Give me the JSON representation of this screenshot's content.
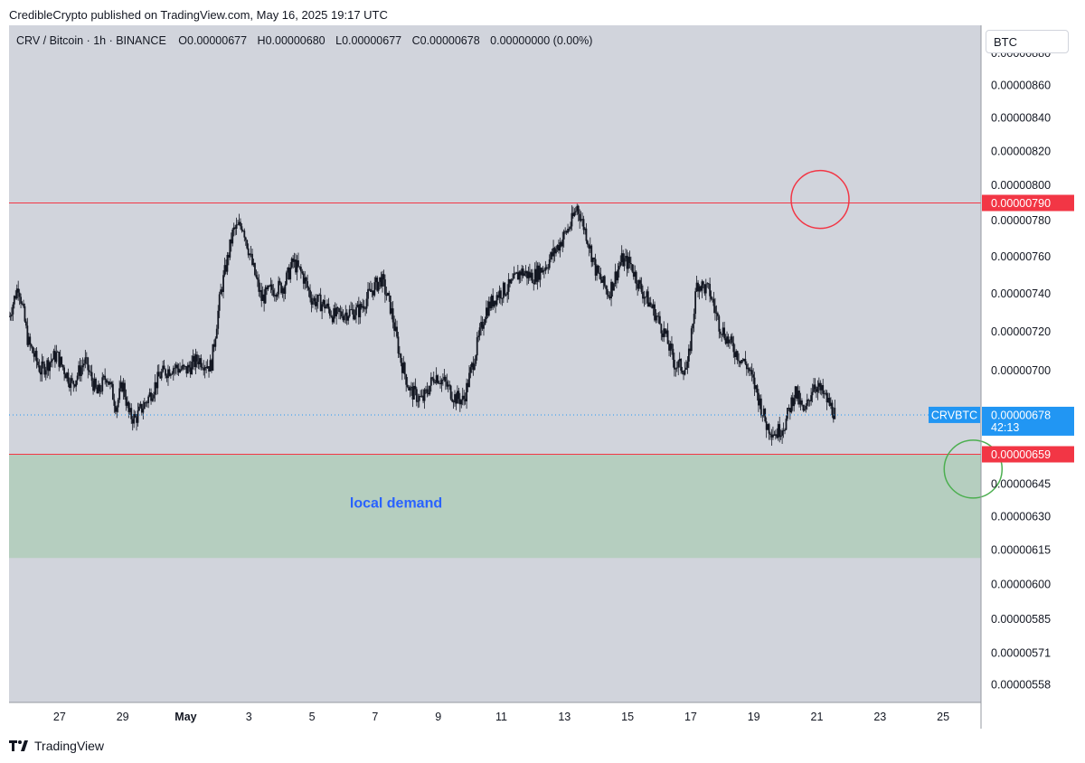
{
  "publisher_line": "CredibleCrypto published on TradingView.com, May 16, 2025 19:17 UTC",
  "brand": "TradingView",
  "header": {
    "symbol": "CRV / Bitcoin · 1h · BINANCE",
    "o_label": "O",
    "o": "0.00000677",
    "h_label": "H",
    "h": "0.00000680",
    "l_label": "L",
    "l": "0.00000677",
    "c_label": "C",
    "c": "0.00000678",
    "change": "0.00000000 (0.00%)"
  },
  "currency_button": "BTC",
  "colors": {
    "background": "#d1d4dc",
    "zone": "#b5cebf",
    "resistance": "#f23645",
    "support_circle": "#4caf50",
    "resistance_circle": "#f23645",
    "last_price": "#2196f3",
    "annotation": "#2962ff"
  },
  "chart_data": {
    "type": "candlestick",
    "symbol": "CRV / Bitcoin",
    "interval": "1h",
    "exchange": "BINANCE",
    "x_tick_labels": [
      "27",
      "29",
      "May",
      "3",
      "5",
      "7",
      "9",
      "11",
      "13",
      "15",
      "17",
      "19",
      "21",
      "23",
      "25"
    ],
    "y_tick_labels": [
      "0.00000880",
      "0.00000860",
      "0.00000840",
      "0.00000820",
      "0.00000800",
      "0.00000780",
      "0.00000760",
      "0.00000740",
      "0.00000720",
      "0.00000700",
      "0.00000645",
      "0.00000630",
      "0.00000615",
      "0.00000600",
      "0.00000585",
      "0.00000571",
      "0.00000558"
    ],
    "y_scale": "log",
    "ylim": [
      5.51e-06,
      8.98e-06
    ],
    "xlim_days": [
      -14.6,
      16.2
    ],
    "price_path": [
      [
        -14.6,
        7.28e-06
      ],
      [
        -14.3,
        7.45e-06
      ],
      [
        -14.0,
        7.15e-06
      ],
      [
        -13.6,
        7e-06
      ],
      [
        -13.1,
        7.08e-06
      ],
      [
        -12.6,
        6.93e-06
      ],
      [
        -12.2,
        7.05e-06
      ],
      [
        -11.8,
        6.88e-06
      ],
      [
        -11.5,
        6.98e-06
      ],
      [
        -11.2,
        6.82e-06
      ],
      [
        -11.0,
        6.94e-06
      ],
      [
        -10.8,
        6.78e-06
      ],
      [
        -10.6,
        6.76e-06
      ],
      [
        -10.2,
        6.86e-06
      ],
      [
        -9.8,
        6.98e-06
      ],
      [
        -9.4,
        7.02e-06
      ],
      [
        -9.0,
        7e-06
      ],
      [
        -8.6,
        7.06e-06
      ],
      [
        -8.2,
        7.02e-06
      ],
      [
        -7.9,
        7.4e-06
      ],
      [
        -7.5,
        7.74e-06
      ],
      [
        -7.2,
        7.78e-06
      ],
      [
        -6.9,
        7.56e-06
      ],
      [
        -6.6,
        7.37e-06
      ],
      [
        -6.3,
        7.42e-06
      ],
      [
        -5.9,
        7.44e-06
      ],
      [
        -5.6,
        7.57e-06
      ],
      [
        -5.3,
        7.5e-06
      ],
      [
        -5.0,
        7.37e-06
      ],
      [
        -4.6,
        7.34e-06
      ],
      [
        -4.3,
        7.28e-06
      ],
      [
        -3.9,
        7.3e-06
      ],
      [
        -3.5,
        7.31e-06
      ],
      [
        -3.1,
        7.42e-06
      ],
      [
        -2.8,
        7.48e-06
      ],
      [
        -2.5,
        7.32e-06
      ],
      [
        -2.2,
        7.06e-06
      ],
      [
        -1.9,
        6.9e-06
      ],
      [
        -1.5,
        6.85e-06
      ],
      [
        -1.1,
        6.98e-06
      ],
      [
        -0.8,
        6.94e-06
      ],
      [
        -0.5,
        6.87e-06
      ],
      [
        -0.2,
        6.85e-06
      ],
      [
        0.1,
        7.04e-06
      ],
      [
        0.5,
        7.31e-06
      ],
      [
        0.9,
        7.4e-06
      ],
      [
        1.3,
        7.44e-06
      ],
      [
        1.6,
        7.52e-06
      ],
      [
        2.0,
        7.49e-06
      ],
      [
        2.4,
        7.55e-06
      ],
      [
        2.8,
        7.66e-06
      ],
      [
        3.2,
        7.78e-06
      ],
      [
        3.4,
        7.88e-06
      ],
      [
        3.7,
        7.72e-06
      ],
      [
        4.0,
        7.52e-06
      ],
      [
        4.4,
        7.4e-06
      ],
      [
        4.8,
        7.58e-06
      ],
      [
        5.1,
        7.56e-06
      ],
      [
        5.4,
        7.43e-06
      ],
      [
        5.8,
        7.32e-06
      ],
      [
        6.2,
        7.18e-06
      ],
      [
        6.5,
        7.03e-06
      ],
      [
        6.9,
        7.01e-06
      ],
      [
        7.2,
        7.46e-06
      ],
      [
        7.6,
        7.41e-06
      ],
      [
        7.9,
        7.24e-06
      ],
      [
        8.2,
        7.15e-06
      ],
      [
        8.5,
        7.08e-06
      ],
      [
        8.8,
        7.02e-06
      ],
      [
        9.1,
        6.89e-06
      ],
      [
        9.4,
        6.73e-06
      ],
      [
        9.7,
        6.69e-06
      ],
      [
        10.0,
        6.74e-06
      ],
      [
        10.3,
        6.9e-06
      ],
      [
        10.6,
        6.78e-06
      ],
      [
        10.9,
        6.94e-06
      ],
      [
        11.2,
        6.88e-06
      ],
      [
        11.6,
        6.78e-06
      ]
    ],
    "horizontal_lines": [
      {
        "value": "0.00000790",
        "price": 7.9e-06,
        "color": "#f23645"
      },
      {
        "value": "0.00000659",
        "price": 6.59e-06,
        "color": "#f23645"
      }
    ],
    "last_price": {
      "symbol": "CRVBTC",
      "value": "0.00000678",
      "price": 6.78e-06,
      "countdown": "42:13"
    },
    "zone": {
      "label": "local demand",
      "top": 6.59e-06,
      "bottom": 6.115e-06
    },
    "markers": [
      {
        "shape": "circle",
        "color": "#f23645",
        "day": 11.1,
        "price": 7.92e-06
      },
      {
        "shape": "circle",
        "color": "#4caf50",
        "day": 15.95,
        "price": 6.52e-06
      }
    ]
  }
}
